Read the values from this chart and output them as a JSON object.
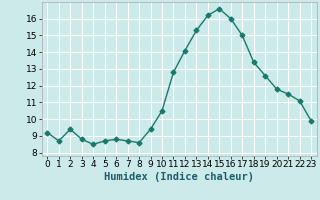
{
  "x": [
    0,
    1,
    2,
    3,
    4,
    5,
    6,
    7,
    8,
    9,
    10,
    11,
    12,
    13,
    14,
    15,
    16,
    17,
    18,
    19,
    20,
    21,
    22,
    23
  ],
  "y": [
    9.2,
    8.7,
    9.4,
    8.8,
    8.5,
    8.7,
    8.8,
    8.7,
    8.6,
    9.4,
    10.5,
    12.8,
    14.1,
    15.3,
    16.2,
    16.6,
    16.0,
    15.0,
    13.4,
    12.6,
    11.8,
    11.5,
    11.1,
    9.9
  ],
  "line_color": "#1a7a6a",
  "marker": "D",
  "markersize": 2.5,
  "linewidth": 1.0,
  "bg_color": "#cceaea",
  "grid_color": "#ffffff",
  "xlabel": "Humidex (Indice chaleur)",
  "xlabel_fontsize": 7.5,
  "tick_fontsize": 6.5,
  "xlim": [
    -0.5,
    23.5
  ],
  "ylim": [
    7.8,
    17.0
  ],
  "yticks": [
    8,
    9,
    10,
    11,
    12,
    13,
    14,
    15,
    16
  ],
  "xticks": [
    0,
    1,
    2,
    3,
    4,
    5,
    6,
    7,
    8,
    9,
    10,
    11,
    12,
    13,
    14,
    15,
    16,
    17,
    18,
    19,
    20,
    21,
    22,
    23
  ]
}
